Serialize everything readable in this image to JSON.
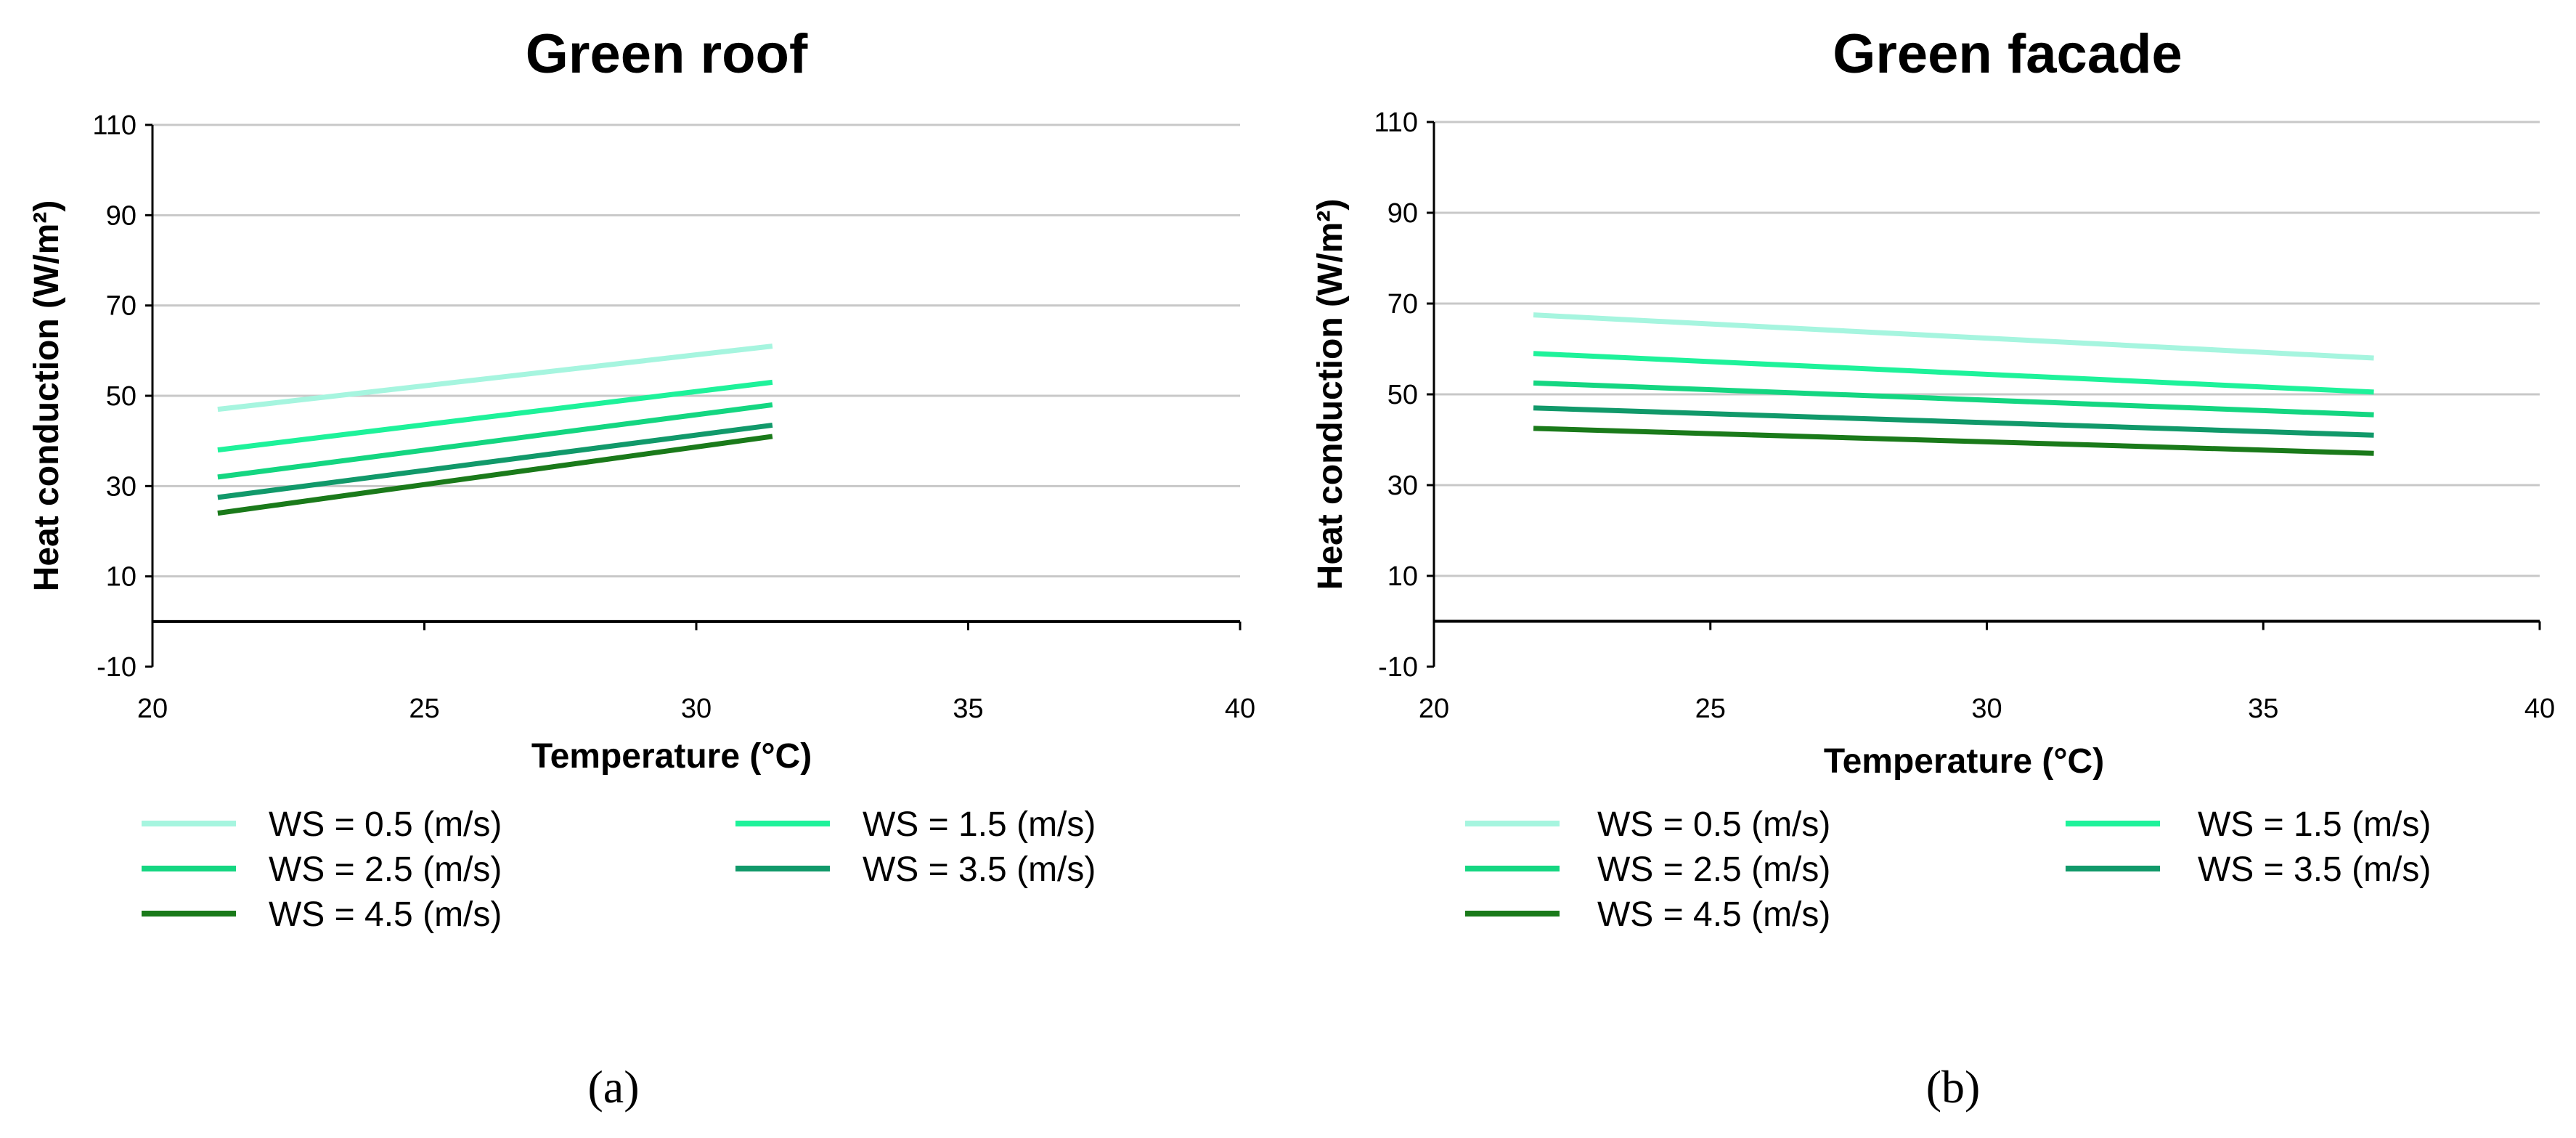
{
  "chart_data": [
    {
      "type": "line",
      "panel_label": "(a)",
      "title": "Green roof",
      "xlabel": "Temperature (°C)",
      "ylabel": "Heat conduction (W/m²)",
      "xlim": [
        20,
        40
      ],
      "ylim": [
        -10,
        110
      ],
      "xticks": [
        "20",
        "25",
        "30",
        "35",
        "40"
      ],
      "yticks": [
        "-10",
        "10",
        "30",
        "50",
        "70",
        "90",
        "110"
      ],
      "zero_line": 0,
      "legend_position": "bottom",
      "series": [
        {
          "name": "WS = 0.5 (m/s)",
          "color": "#a6f5df",
          "x": [
            21.2,
            31.4
          ],
          "y": [
            47,
            61
          ]
        },
        {
          "name": "WS = 1.5 (m/s)",
          "color": "#1ef29a",
          "x": [
            21.2,
            31.4
          ],
          "y": [
            38,
            53
          ]
        },
        {
          "name": "WS = 2.5 (m/s)",
          "color": "#14d681",
          "x": [
            21.2,
            31.4
          ],
          "y": [
            32,
            48
          ]
        },
        {
          "name": "WS = 3.5 (m/s)",
          "color": "#11996a",
          "x": [
            21.2,
            31.4
          ],
          "y": [
            27.5,
            43.5
          ]
        },
        {
          "name": "WS = 4.5 (m/s)",
          "color": "#1a7a1a",
          "x": [
            21.2,
            31.4
          ],
          "y": [
            24,
            41
          ]
        }
      ]
    },
    {
      "type": "line",
      "panel_label": "(b)",
      "title": "Green facade",
      "xlabel": "Temperature (°C)",
      "ylabel": "Heat conduction (W/m²)",
      "xlim": [
        20,
        40
      ],
      "ylim": [
        -10,
        110
      ],
      "xticks": [
        "20",
        "25",
        "30",
        "35",
        "40"
      ],
      "yticks": [
        "-10",
        "10",
        "30",
        "50",
        "70",
        "90",
        "110"
      ],
      "zero_line": 0,
      "legend_position": "bottom",
      "series": [
        {
          "name": "WS = 0.5 (m/s)",
          "color": "#a6f5df",
          "x": [
            21.8,
            37
          ],
          "y": [
            67.5,
            58
          ]
        },
        {
          "name": "WS = 1.5 (m/s)",
          "color": "#1ef29a",
          "x": [
            21.8,
            37
          ],
          "y": [
            59,
            50.5
          ]
        },
        {
          "name": "WS = 2.5 (m/s)",
          "color": "#14d681",
          "x": [
            21.8,
            37
          ],
          "y": [
            52.5,
            45.5
          ]
        },
        {
          "name": "WS = 3.5 (m/s)",
          "color": "#11996a",
          "x": [
            21.8,
            37
          ],
          "y": [
            47,
            41
          ]
        },
        {
          "name": "WS = 4.5 (m/s)",
          "color": "#1a7a1a",
          "x": [
            21.8,
            37
          ],
          "y": [
            42.5,
            37
          ]
        }
      ]
    }
  ]
}
